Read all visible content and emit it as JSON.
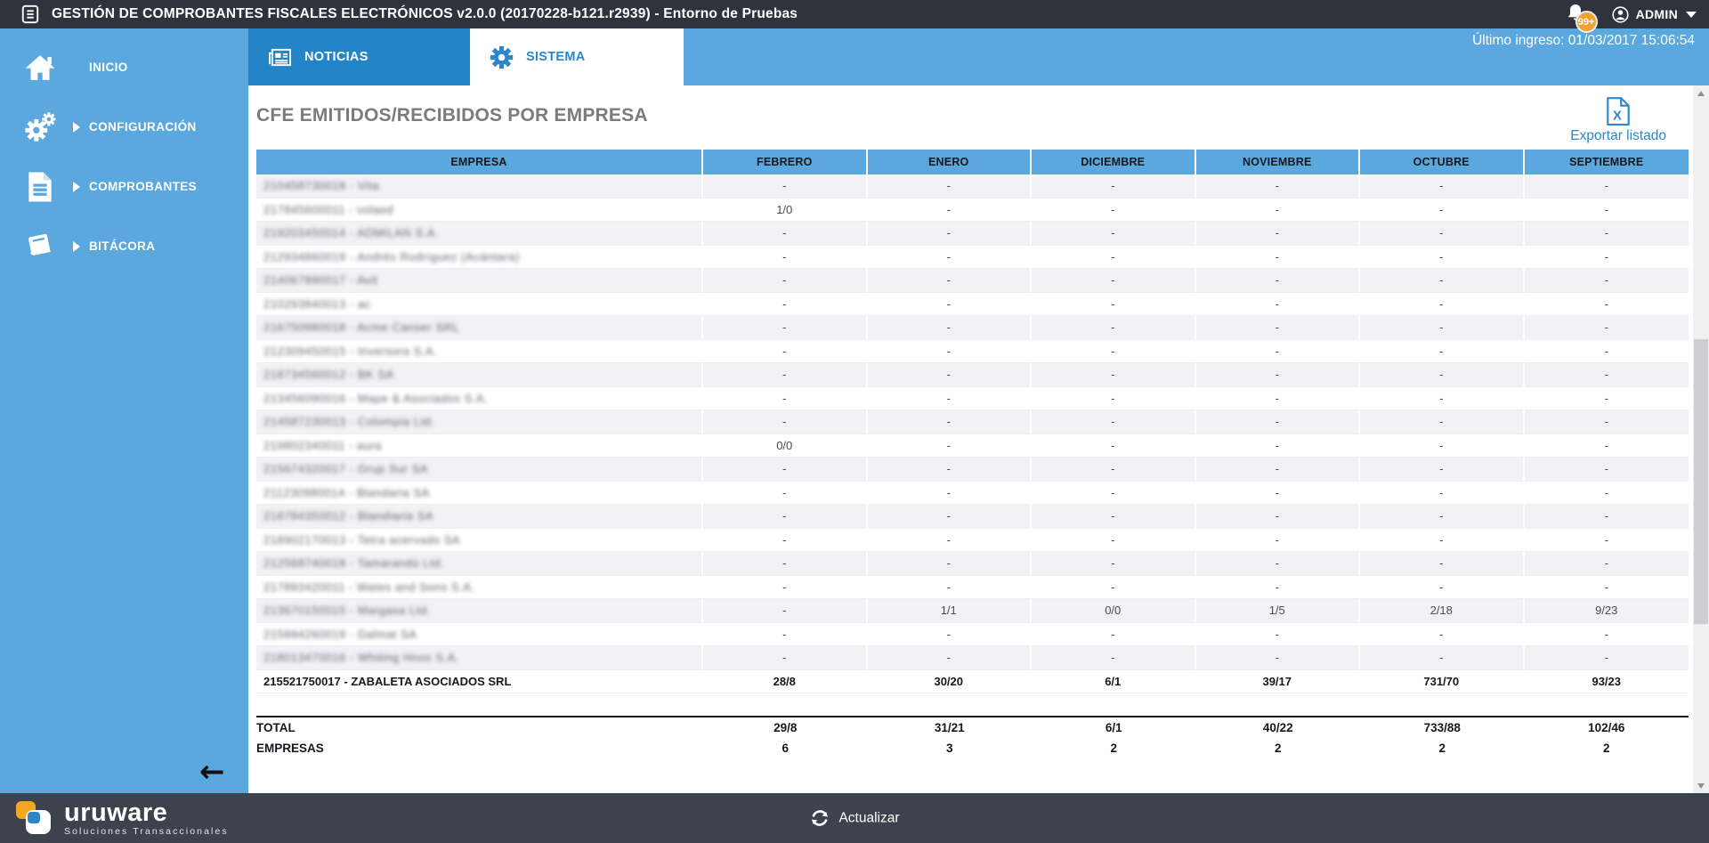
{
  "titlebar": {
    "title": "GESTIÓN DE COMPROBANTES FISCALES ELECTRÓNICOS v2.0.0 (20170228-b121.r2939) - Entorno de Pruebas",
    "notifications_badge": "99+",
    "user": "ADMIN"
  },
  "infobar": {
    "last_login": "Último ingreso: 01/03/2017 15:06:54"
  },
  "sidebar": {
    "items": [
      {
        "label": "INICIO",
        "icon": "home-icon",
        "expandable": false
      },
      {
        "label": "CONFIGURACIÓN",
        "icon": "gears-icon",
        "expandable": true
      },
      {
        "label": "COMPROBANTES",
        "icon": "document-icon",
        "expandable": true
      },
      {
        "label": "BITÁCORA",
        "icon": "book-icon",
        "expandable": true
      }
    ]
  },
  "tabs": [
    {
      "label": "NOTICIAS",
      "icon": "newspaper-icon",
      "active": false
    },
    {
      "label": "SISTEMA",
      "icon": "gear-icon",
      "active": true
    }
  ],
  "main": {
    "title": "CFE EMITIDOS/RECIBIDOS POR EMPRESA",
    "export_label": "Exportar listado"
  },
  "table": {
    "columns": [
      "EMPRESA",
      "FEBRERO",
      "ENERO",
      "DICIEMBRE",
      "NOVIEMBRE",
      "OCTUBRE",
      "SEPTIEMBRE"
    ],
    "rows": [
      {
        "empresa": "210458730018 - Vita",
        "redacted": true,
        "bold": false,
        "values": [
          "-",
          "-",
          "-",
          "-",
          "-",
          "-"
        ]
      },
      {
        "empresa": "217845600011 - volaed",
        "redacted": true,
        "bold": false,
        "values": [
          "1/0",
          "-",
          "-",
          "-",
          "-",
          "-"
        ]
      },
      {
        "empresa": "219203450014 - ADMILAN S.A.",
        "redacted": true,
        "bold": false,
        "values": [
          "-",
          "-",
          "-",
          "-",
          "-",
          "-"
        ]
      },
      {
        "empresa": "212934860019 - Andrés Rodríguez (Acántara)",
        "redacted": true,
        "bold": false,
        "values": [
          "-",
          "-",
          "-",
          "-",
          "-",
          "-"
        ]
      },
      {
        "empresa": "214067890017 - Avit",
        "redacted": true,
        "bold": false,
        "values": [
          "-",
          "-",
          "-",
          "-",
          "-",
          "-"
        ]
      },
      {
        "empresa": "210293840013 - ac",
        "redacted": true,
        "bold": false,
        "values": [
          "-",
          "-",
          "-",
          "-",
          "-",
          "-"
        ]
      },
      {
        "empresa": "216750980018 - Acme Canser SRL",
        "redacted": true,
        "bold": false,
        "values": [
          "-",
          "-",
          "-",
          "-",
          "-",
          "-"
        ]
      },
      {
        "empresa": "212309450015 - Inversora S.A.",
        "redacted": true,
        "bold": false,
        "values": [
          "-",
          "-",
          "-",
          "-",
          "-",
          "-"
        ]
      },
      {
        "empresa": "218734560012 - BK SA",
        "redacted": true,
        "bold": false,
        "values": [
          "-",
          "-",
          "-",
          "-",
          "-",
          "-"
        ]
      },
      {
        "empresa": "213456090016 - Mape & Asociados S.A.",
        "redacted": true,
        "bold": false,
        "values": [
          "-",
          "-",
          "-",
          "-",
          "-",
          "-"
        ]
      },
      {
        "empresa": "214587230013 - Colompia Ltd.",
        "redacted": true,
        "bold": false,
        "values": [
          "-",
          "-",
          "-",
          "-",
          "-",
          "-"
        ]
      },
      {
        "empresa": "219802340011 - aura",
        "redacted": true,
        "bold": false,
        "values": [
          "0/0",
          "-",
          "-",
          "-",
          "-",
          "-"
        ]
      },
      {
        "empresa": "215674320017 - Grup Sur SA",
        "redacted": true,
        "bold": false,
        "values": [
          "-",
          "-",
          "-",
          "-",
          "-",
          "-"
        ]
      },
      {
        "empresa": "211230980014 - Blandaria SA",
        "redacted": true,
        "bold": false,
        "values": [
          "-",
          "-",
          "-",
          "-",
          "-",
          "-"
        ]
      },
      {
        "empresa": "216784350012 - Blandiaria SA",
        "redacted": true,
        "bold": false,
        "values": [
          "-",
          "-",
          "-",
          "-",
          "-",
          "-"
        ]
      },
      {
        "empresa": "218902170013 - Tetra acervado SA",
        "redacted": true,
        "bold": false,
        "values": [
          "-",
          "-",
          "-",
          "-",
          "-",
          "-"
        ]
      },
      {
        "empresa": "212568740018 - Tamarandú Ltd.",
        "redacted": true,
        "bold": false,
        "values": [
          "-",
          "-",
          "-",
          "-",
          "-",
          "-"
        ]
      },
      {
        "empresa": "217893420011 - Wates and Sons S.A.",
        "redacted": true,
        "bold": false,
        "values": [
          "-",
          "-",
          "-",
          "-",
          "-",
          "-"
        ]
      },
      {
        "empresa": "213670150015 - Margasa Ltd.",
        "redacted": true,
        "bold": false,
        "values": [
          "-",
          "1/1",
          "0/0",
          "1/5",
          "2/18",
          "9/23"
        ]
      },
      {
        "empresa": "215894260019 - Dalmat SA",
        "redacted": true,
        "bold": false,
        "values": [
          "-",
          "-",
          "-",
          "-",
          "-",
          "-"
        ]
      },
      {
        "empresa": "218013470016 - Whiting Hnos S.A.",
        "redacted": true,
        "bold": false,
        "values": [
          "-",
          "-",
          "-",
          "-",
          "-",
          "-"
        ]
      },
      {
        "empresa": "215521750017 - ZABALETA ASOCIADOS SRL",
        "redacted": false,
        "bold": true,
        "values": [
          "28/8",
          "30/20",
          "6/1",
          "39/17",
          "731/70",
          "93/23"
        ]
      }
    ],
    "total_row": {
      "label": "TOTAL",
      "values": [
        "29/8",
        "31/21",
        "6/1",
        "40/22",
        "733/88",
        "102/46"
      ]
    },
    "empresas_row": {
      "label": "EMPRESAS",
      "values": [
        "6",
        "3",
        "2",
        "2",
        "2",
        "2"
      ]
    }
  },
  "footer": {
    "brand": "uruware",
    "brand_tagline": "Soluciones Transaccionales",
    "refresh_label": "Actualizar"
  },
  "colors": {
    "titlebar_dark": "#2e333c",
    "footer_dark": "#3d434c",
    "sidebar_blue": "#5aa8de",
    "tab_blue": "#2385c8",
    "link_blue": "#2e86c9",
    "badge_orange": "#f0a12f",
    "row_stripe": "#f1f1f6"
  }
}
